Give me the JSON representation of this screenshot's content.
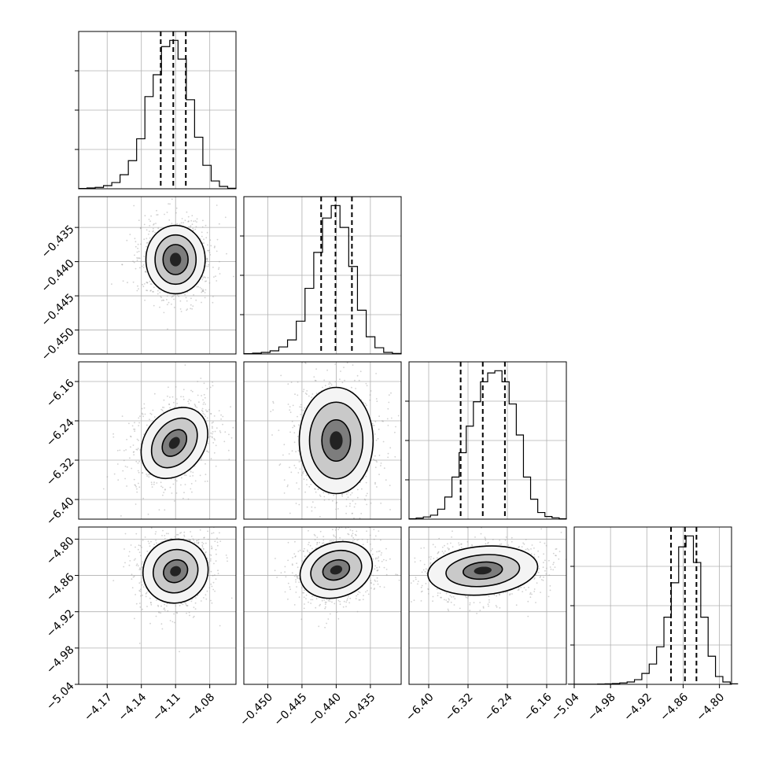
{
  "chart_data": {
    "type": "corner",
    "parameters": [
      {
        "range": [
          -4.195,
          -4.057
        ],
        "ticks": [
          -4.17,
          -4.14,
          -4.11,
          -4.08
        ],
        "tick_labels": [
          "−4.17",
          "−4.14",
          "−4.11",
          "−4.08"
        ],
        "mean": -4.112,
        "sd": 0.011,
        "quantiles": [
          -4.123,
          -4.112,
          -4.101
        ]
      },
      {
        "range": [
          -0.4535,
          -0.4305
        ],
        "ticks": [
          -0.45,
          -0.445,
          -0.44,
          -0.435
        ],
        "tick_labels": [
          "−0.450",
          "−0.445",
          "−0.440",
          "−0.435"
        ],
        "mean": -0.4401,
        "sd": 0.0022,
        "quantiles": [
          -0.4422,
          -0.4401,
          -0.4377
        ]
      },
      {
        "range": [
          -6.44,
          -6.12
        ],
        "ticks": [
          -6.4,
          -6.32,
          -6.24,
          -6.16
        ],
        "tick_labels": [
          "−6.40",
          "−6.32",
          "−6.24",
          "−6.16"
        ],
        "mean": -6.29,
        "sd": 0.045,
        "quantiles": [
          -6.335,
          -6.29,
          -6.245
        ]
      },
      {
        "range": [
          -5.04,
          -4.78
        ],
        "ticks": [
          -5.04,
          -4.98,
          -4.92,
          -4.86,
          -4.8
        ],
        "tick_labels": [
          "−5.04",
          "−4.98",
          "−4.92",
          "−4.86",
          "−4.80"
        ],
        "mean": -4.855,
        "sd": 0.022,
        "quantiles": [
          -4.88,
          -4.857,
          -4.838
        ]
      }
    ],
    "histograms": [
      {
        "param": 0,
        "edges_range": [
          -4.195,
          -4.057
        ],
        "counts": [
          2,
          5,
          9,
          20,
          40,
          90,
          180,
          320,
          590,
          730,
          910,
          950,
          830,
          570,
          330,
          150,
          50,
          15,
          3
        ]
      },
      {
        "param": 1,
        "edges_range": [
          -0.4535,
          -0.4305
        ],
        "counts": [
          2,
          5,
          10,
          20,
          45,
          90,
          210,
          420,
          650,
          870,
          950,
          810,
          560,
          280,
          110,
          40,
          10,
          3
        ]
      },
      {
        "param": 2,
        "edges_range": [
          -6.44,
          -6.12
        ],
        "counts": [
          2,
          5,
          10,
          18,
          45,
          100,
          190,
          300,
          420,
          530,
          620,
          660,
          670,
          620,
          520,
          380,
          190,
          90,
          30,
          12,
          6,
          2
        ]
      },
      {
        "param": 3,
        "edges_range": [
          -5.05,
          -4.77
        ],
        "counts": [
          1,
          1,
          1,
          1,
          2,
          3,
          5,
          9,
          15,
          30,
          70,
          130,
          240,
          430,
          650,
          880,
          950,
          780,
          430,
          180,
          50,
          15,
          3
        ]
      }
    ],
    "contours": [
      {
        "x": 0,
        "y": 1,
        "centre": [
          -4.11,
          -0.4397
        ],
        "levels": [
          {
            "rx": 0.026,
            "ry": 0.005,
            "rot": 0
          },
          {
            "rx": 0.018,
            "ry": 0.0036,
            "rot": 0
          },
          {
            "rx": 0.011,
            "ry": 0.0022,
            "rot": 0
          }
        ]
      },
      {
        "x": 0,
        "y": 2,
        "centre": [
          -4.111,
          -6.285
        ],
        "levels": [
          {
            "rx": 0.034,
            "ry": 0.06,
            "rot": -52
          },
          {
            "rx": 0.024,
            "ry": 0.04,
            "rot": -52
          },
          {
            "rx": 0.013,
            "ry": 0.021,
            "rot": -52
          }
        ]
      },
      {
        "x": 0,
        "y": 3,
        "centre": [
          -4.11,
          -4.853
        ],
        "levels": [
          {
            "rx": 0.029,
            "ry": 0.052,
            "rot": -33
          },
          {
            "rx": 0.02,
            "ry": 0.035,
            "rot": -33
          },
          {
            "rx": 0.011,
            "ry": 0.018,
            "rot": -33
          }
        ]
      },
      {
        "x": 1,
        "y": 2,
        "centre": [
          -0.44,
          -6.28
        ],
        "levels": [
          {
            "rx": 0.0054,
            "ry": 0.108,
            "rot": 0
          },
          {
            "rx": 0.0039,
            "ry": 0.078,
            "rot": 0
          },
          {
            "rx": 0.0021,
            "ry": 0.042,
            "rot": 0
          }
        ]
      },
      {
        "x": 1,
        "y": 3,
        "centre": [
          -0.44,
          -4.851
        ],
        "levels": [
          {
            "rx": 0.0054,
            "ry": 0.045,
            "rot": -18
          },
          {
            "rx": 0.0038,
            "ry": 0.031,
            "rot": -18
          },
          {
            "rx": 0.002,
            "ry": 0.016,
            "rot": -18
          }
        ]
      },
      {
        "x": 2,
        "y": 3,
        "centre": [
          -6.29,
          -4.852
        ],
        "levels": [
          {
            "rx": 0.112,
            "ry": 0.04,
            "rot": -5
          },
          {
            "rx": 0.075,
            "ry": 0.026,
            "rot": -5
          },
          {
            "rx": 0.04,
            "ry": 0.014,
            "rot": -5
          }
        ]
      }
    ],
    "grid": true,
    "quantile_lines": "dashed"
  }
}
